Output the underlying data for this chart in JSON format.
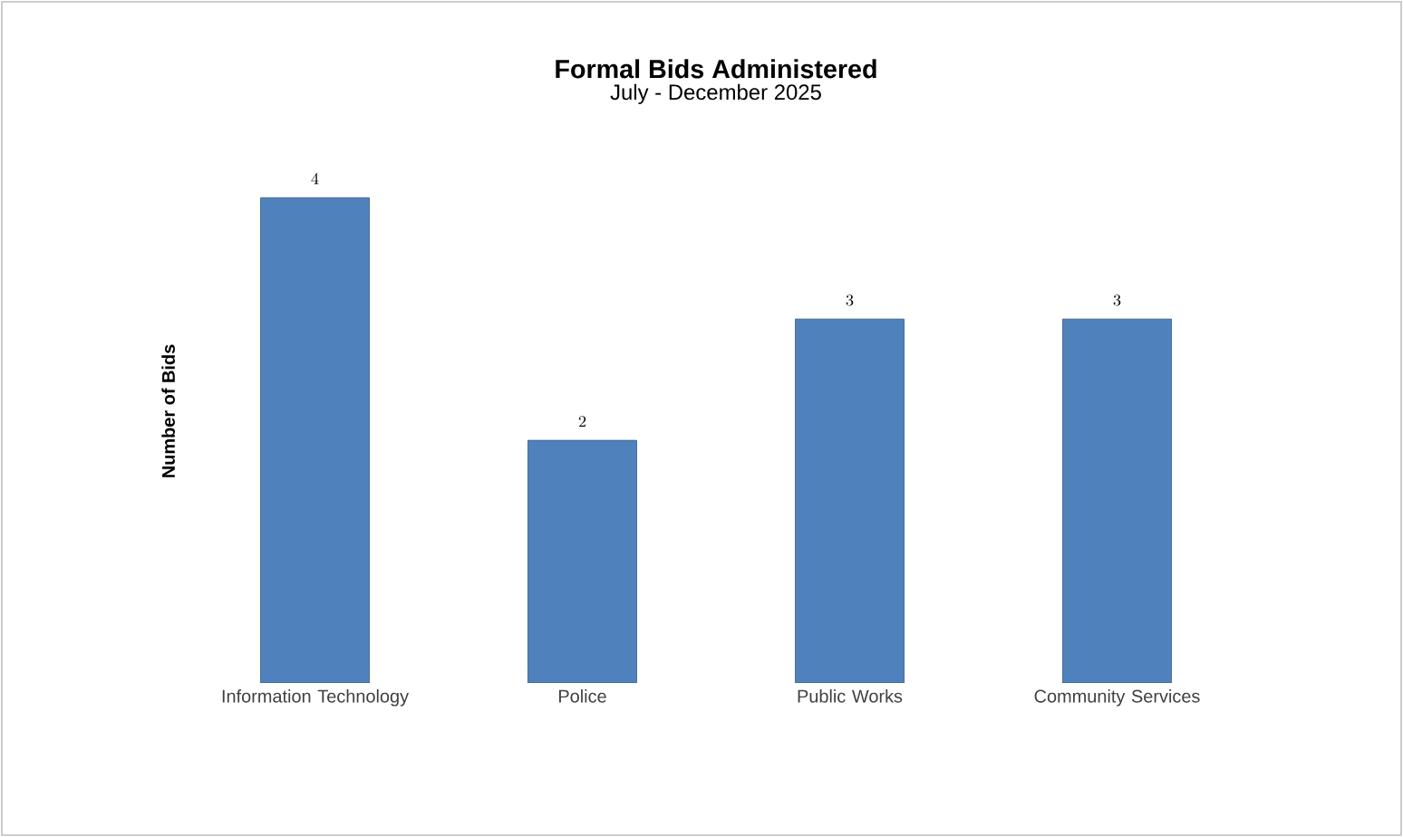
{
  "chart_data": {
    "type": "bar",
    "title": "Formal Bids Administered",
    "subtitle": "July - December 2025",
    "ylabel": "Number of Bids",
    "categories": [
      "Information Technology",
      "Police",
      "Public Works",
      "Community Services"
    ],
    "values": [
      4,
      2,
      3,
      3
    ],
    "color": "#4f81bd",
    "data_labels": true
  }
}
